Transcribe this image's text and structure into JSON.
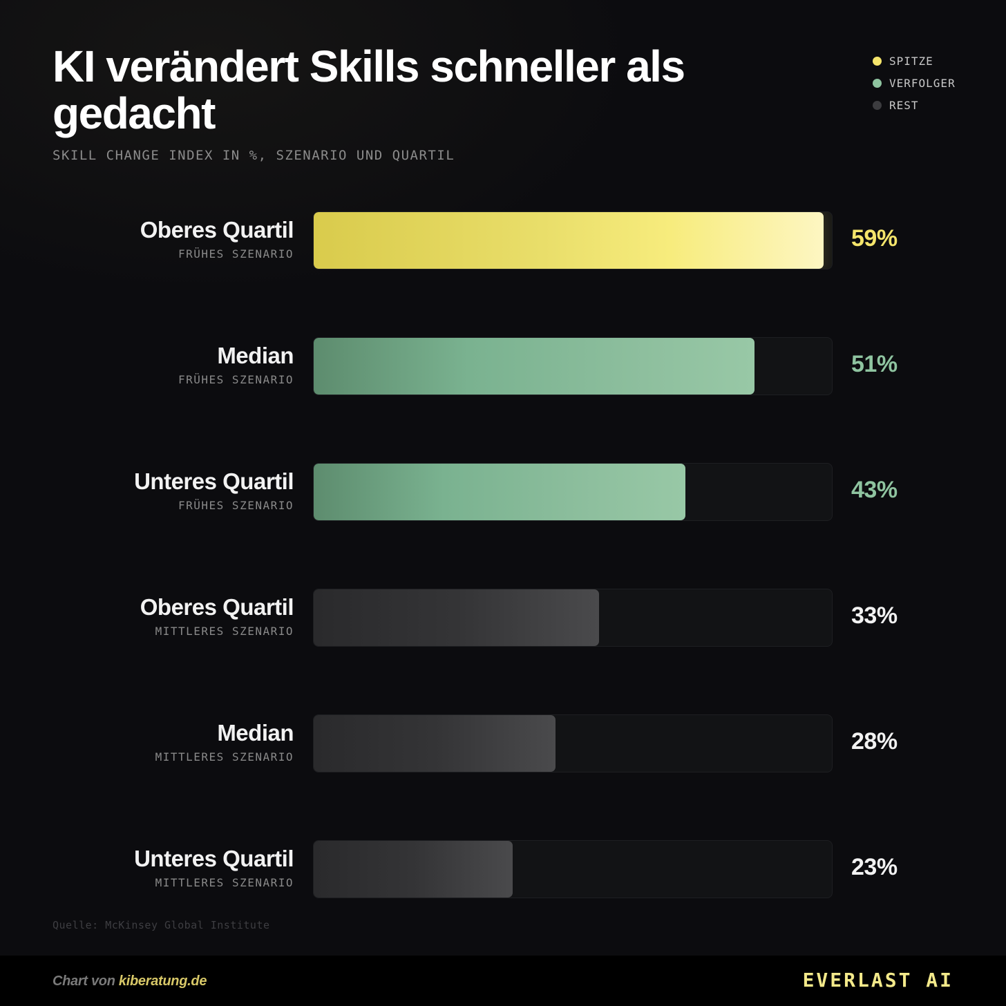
{
  "title": "KI verändert Skills schneller als gedacht",
  "subtitle": "SKILL CHANGE INDEX IN %, SZENARIO UND QUARTIL",
  "legend": [
    {
      "label": "SPITZE",
      "color": "#f5e56b"
    },
    {
      "label": "VERFOLGER",
      "color": "#8fc4a0"
    },
    {
      "label": "REST",
      "color": "#3c3c3f"
    }
  ],
  "colors": {
    "top": "#f5e56b",
    "follower": "#8fc4a0",
    "rest": "#3c3c3f",
    "rest_value_text": "#f2f2f2"
  },
  "chart_data": {
    "type": "bar",
    "orientation": "horizontal",
    "categories": [
      "Oberes Quartil / FRÜHES SZENARIO",
      "Median / FRÜHES SZENARIO",
      "Unteres Quartil / FRÜHES SZENARIO",
      "Oberes Quartil / MITTLERES SZENARIO",
      "Median / MITTLERES SZENARIO",
      "Unteres Quartil / MITTLERES SZENARIO"
    ],
    "values": [
      59,
      51,
      43,
      33,
      28,
      23
    ],
    "xlim": [
      0,
      60
    ],
    "grid": false,
    "legend_position": "top-right",
    "rows": [
      {
        "label": "Oberes Quartil",
        "sublabel": "FRÜHES SZENARIO",
        "value": 59,
        "value_label": "59%",
        "group": "SPITZE"
      },
      {
        "label": "Median",
        "sublabel": "FRÜHES SZENARIO",
        "value": 51,
        "value_label": "51%",
        "group": "VERFOLGER"
      },
      {
        "label": "Unteres Quartil",
        "sublabel": "FRÜHES SZENARIO",
        "value": 43,
        "value_label": "43%",
        "group": "VERFOLGER"
      },
      {
        "label": "Oberes Quartil",
        "sublabel": "MITTLERES SZENARIO",
        "value": 33,
        "value_label": "33%",
        "group": "REST"
      },
      {
        "label": "Median",
        "sublabel": "MITTLERES SZENARIO",
        "value": 28,
        "value_label": "28%",
        "group": "REST"
      },
      {
        "label": "Unteres Quartil",
        "sublabel": "MITTLERES SZENARIO",
        "value": 23,
        "value_label": "23%",
        "group": "REST"
      }
    ]
  },
  "source": "Quelle: McKinsey Global Institute",
  "footer": {
    "credit_prefix": "Chart von",
    "credit_link": "kiberatung.de",
    "brand": "EVERLAST AI"
  }
}
